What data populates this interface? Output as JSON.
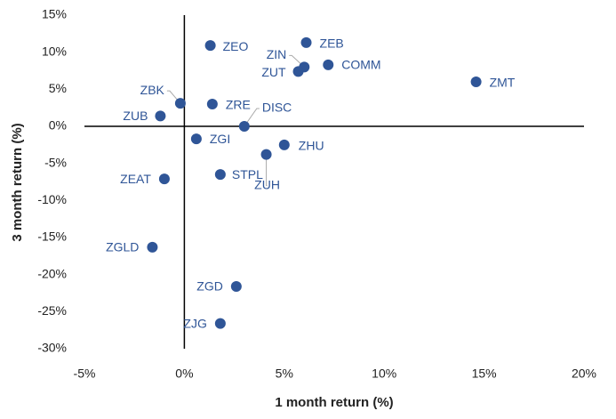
{
  "chart_data": {
    "type": "scatter",
    "x_label": "1 month return (%)",
    "y_label": "3 month return (%)",
    "color": "#2f5597",
    "point_labels": [
      "ZEO",
      "ZEB",
      "ZIN",
      "ZUT",
      "COMM",
      "ZMT",
      "ZBK",
      "ZRE",
      "DISC",
      "ZUB",
      "ZGI",
      "ZHU",
      "ZUH",
      "STPL",
      "ZEAT",
      "ZGLD",
      "ZGD",
      "ZJG"
    ],
    "x": [
      1.3,
      6.1,
      6.0,
      5.7,
      7.2,
      14.6,
      -0.2,
      1.4,
      3.0,
      -1.2,
      0.6,
      5.0,
      4.1,
      1.8,
      -1.0,
      -1.6,
      2.6,
      1.8
    ],
    "values": [
      10.9,
      11.3,
      8.0,
      7.4,
      8.3,
      6.0,
      3.1,
      3.0,
      0.0,
      1.4,
      -1.7,
      -2.5,
      -3.8,
      -6.5,
      -7.1,
      -16.3,
      -21.6,
      -26.6
    ],
    "xlim": [
      -5,
      20
    ],
    "xticks": [
      {
        "value": -5,
        "label": "-5%"
      },
      {
        "value": 0,
        "label": "0%"
      },
      {
        "value": 5,
        "label": "5%"
      },
      {
        "value": 10,
        "label": "10%"
      },
      {
        "value": 15,
        "label": "15%"
      },
      {
        "value": 20,
        "label": "20%"
      }
    ],
    "ylim": [
      -30,
      15
    ],
    "yticks": [
      {
        "value": 15,
        "label": "15%"
      },
      {
        "value": 10,
        "label": "10%"
      },
      {
        "value": 5,
        "label": "5%"
      },
      {
        "value": 0,
        "label": "0%"
      },
      {
        "value": -5,
        "label": "-5%"
      },
      {
        "value": -10,
        "label": "-10%"
      },
      {
        "value": -15,
        "label": "-15%"
      },
      {
        "value": -20,
        "label": "-20%"
      },
      {
        "value": -25,
        "label": "-25%"
      },
      {
        "value": -30,
        "label": "-30%"
      }
    ]
  }
}
